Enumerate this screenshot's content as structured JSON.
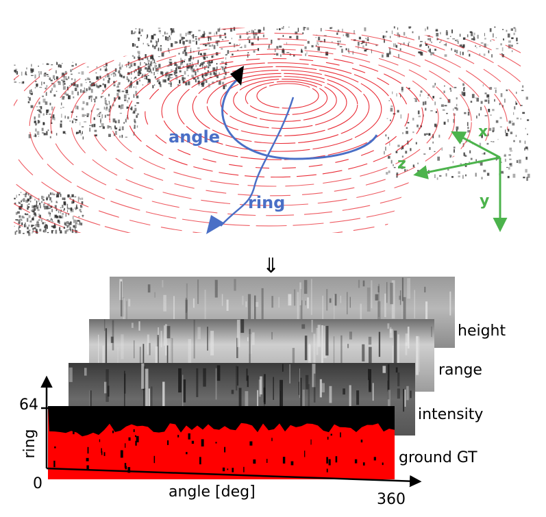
{
  "top_view": {
    "angle_label": "angle",
    "ring_label": "ring",
    "axes": {
      "x": "x",
      "y": "y",
      "z": "z"
    }
  },
  "arrow_glyph": "⇓",
  "layers": [
    {
      "label": "height"
    },
    {
      "label": "range"
    },
    {
      "label": "intensity"
    },
    {
      "label": "ground GT"
    }
  ],
  "axis": {
    "y_title": "ring",
    "y_max": "64",
    "y_min": "0",
    "x_title": "angle [deg]",
    "x_max": "360"
  },
  "colors": {
    "annotation_blue": "#4a6fc6",
    "axis_green": "#4cb34c",
    "point_red": "#e8202a",
    "ground_red": "#ff0000"
  }
}
